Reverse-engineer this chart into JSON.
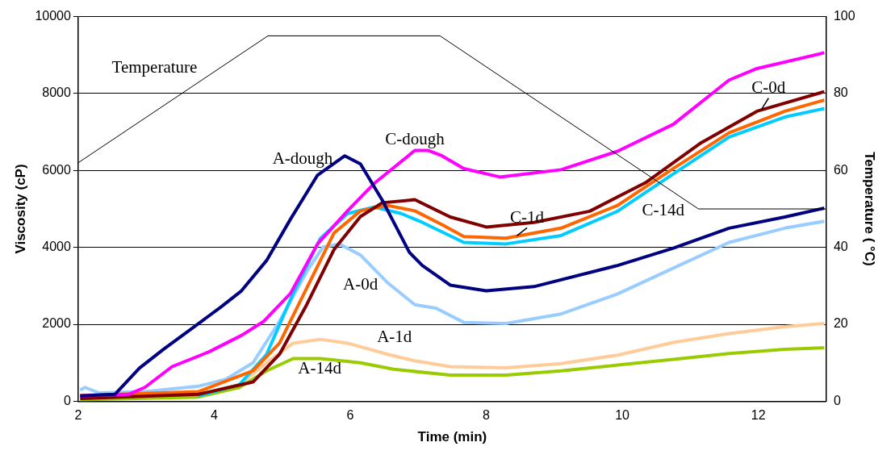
{
  "chart_data": {
    "type": "line",
    "xlabel": "Time (min)",
    "ylabel": "Viscosity (cP)",
    "y2label": "Temperature ( °C)",
    "xlim": [
      2,
      13
    ],
    "xticks": [
      2,
      4,
      6,
      8,
      10,
      12
    ],
    "ylim": [
      0,
      10000
    ],
    "yticks": [
      0,
      2000,
      4000,
      6000,
      8000,
      10000
    ],
    "y2lim": [
      0,
      100
    ],
    "y2ticks": [
      0,
      20,
      40,
      60,
      80,
      100
    ],
    "grid": "y",
    "legend": false,
    "marker": "none",
    "line_style": "solid",
    "series": [
      {
        "name": "Temperature",
        "color": "#000000",
        "axis": "y2",
        "x": [
          2,
          4.79,
          7.32,
          11.12,
          13
        ],
        "values": [
          62,
          95,
          95,
          50,
          50
        ]
      },
      {
        "name": "A-dough",
        "color": "#000080",
        "x": [
          2.03,
          2.54,
          2.9,
          3.26,
          3.6,
          4.09,
          4.4,
          4.77,
          5.12,
          5.52,
          5.92,
          6.15,
          6.47,
          6.87,
          7.06,
          7.47,
          8,
          8.7,
          9.93,
          10.75,
          11.57,
          12.39,
          12.97
        ],
        "values": [
          140,
          180,
          860,
          1360,
          1800,
          2440,
          2870,
          3660,
          4730,
          5880,
          6380,
          6170,
          5230,
          3870,
          3530,
          3020,
          2870,
          2980,
          3530,
          3980,
          4500,
          4790,
          5020
        ]
      },
      {
        "name": "C-dough",
        "color": "#ff00ff",
        "x": [
          2.03,
          2.74,
          2.98,
          3.38,
          3.93,
          4.41,
          4.73,
          5.12,
          5.52,
          5.96,
          6.35,
          6.95,
          7.15,
          7.35,
          7.67,
          8.2,
          9.1,
          9.93,
          10.75,
          11.57,
          11.98,
          12.97
        ],
        "values": [
          140,
          180,
          360,
          900,
          1290,
          1720,
          2080,
          2800,
          4090,
          4950,
          5660,
          6520,
          6520,
          6380,
          6050,
          5830,
          6020,
          6500,
          7200,
          8350,
          8650,
          9060
        ]
      },
      {
        "name": "C-0d",
        "color": "#800000",
        "x": [
          2.03,
          3.77,
          4.57,
          4.96,
          5.36,
          5.76,
          6.15,
          6.47,
          6.95,
          7.47,
          8,
          8.7,
          9.52,
          10.34,
          11.16,
          11.98,
          12.97
        ],
        "values": [
          70,
          180,
          500,
          1220,
          2510,
          3940,
          4800,
          5160,
          5240,
          4790,
          4530,
          4650,
          4940,
          5680,
          6720,
          7540,
          8050
        ]
      },
      {
        "name": "C-1d",
        "color": "#ff6600",
        "x": [
          2.03,
          3.77,
          4.57,
          4.96,
          5.36,
          5.76,
          6.15,
          6.55,
          6.95,
          7.35,
          7.67,
          8.29,
          9.1,
          9.93,
          10.75,
          11.57,
          12.39,
          12.97
        ],
        "values": [
          150,
          250,
          790,
          1510,
          2940,
          4370,
          4950,
          5090,
          4950,
          4590,
          4280,
          4240,
          4500,
          5090,
          6050,
          6980,
          7540,
          7830
        ]
      },
      {
        "name": "C-14d",
        "color": "#00ccff",
        "x": [
          3.77,
          4.37,
          4.77,
          5.16,
          5.56,
          5.96,
          6.35,
          6.75,
          7.06,
          7.67,
          8.29,
          9.1,
          9.93,
          10.75,
          11.57,
          12.39,
          12.97
        ],
        "values": [
          140,
          430,
          1220,
          2800,
          4230,
          4880,
          5050,
          4880,
          4650,
          4130,
          4090,
          4310,
          4940,
          5910,
          6870,
          7390,
          7610
        ]
      },
      {
        "name": "A-0d",
        "color": "#99ccff",
        "x": [
          2.03,
          2.1,
          2.3,
          2.98,
          3.77,
          4.17,
          4.57,
          4.96,
          5.36,
          5.6,
          5.84,
          6.15,
          6.55,
          6.95,
          7.26,
          7.67,
          8.29,
          9.1,
          9.93,
          10.75,
          11.57,
          12.39,
          12.97
        ],
        "values": [
          290,
          360,
          220,
          250,
          390,
          570,
          1000,
          2080,
          3370,
          4010,
          4090,
          3800,
          3080,
          2510,
          2420,
          2050,
          2020,
          2270,
          2790,
          3460,
          4130,
          4500,
          4680
        ]
      },
      {
        "name": "A-1d",
        "color": "#ffcc99",
        "x": [
          3.77,
          4.37,
          4.77,
          5.16,
          5.56,
          5.96,
          6.55,
          6.95,
          7.47,
          8.29,
          9.1,
          9.93,
          10.75,
          11.57,
          12.39,
          12.97
        ],
        "values": [
          180,
          430,
          1000,
          1510,
          1610,
          1510,
          1220,
          1050,
          900,
          870,
          980,
          1200,
          1530,
          1760,
          1940,
          2020
        ]
      },
      {
        "name": "A-14d",
        "color": "#99cc00",
        "x": [
          2.03,
          3.77,
          4.37,
          4.77,
          5.16,
          5.56,
          6.15,
          6.64,
          7.47,
          8.29,
          9.1,
          9.93,
          10.75,
          11.57,
          12.39,
          12.97
        ],
        "values": [
          40,
          110,
          360,
          790,
          1110,
          1110,
          1000,
          830,
          680,
          680,
          790,
          940,
          1090,
          1240,
          1350,
          1390
        ]
      }
    ]
  }
}
